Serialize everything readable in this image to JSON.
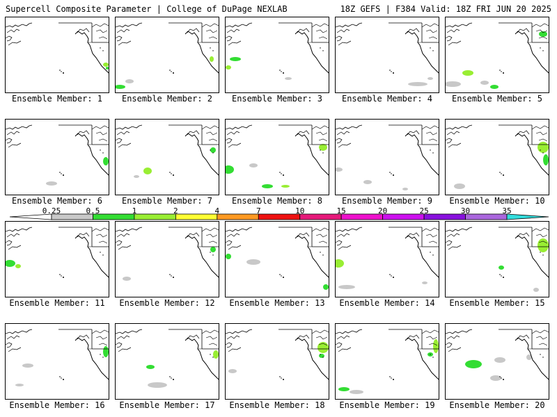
{
  "header": {
    "left": "Supercell Composite Parameter | College of DuPage NEXLAB",
    "right": "18Z GEFS | F384 Valid: 18Z FRI JUN 20 2025"
  },
  "member_label_prefix": "Ensemble Member: ",
  "members": [
    "1",
    "2",
    "3",
    "4",
    "5",
    "6",
    "7",
    "8",
    "9",
    "10",
    "11",
    "12",
    "13",
    "14",
    "15",
    "16",
    "17",
    "18",
    "19",
    "20"
  ],
  "colorbar": {
    "levels": [
      "0.25",
      "0.5",
      "1",
      "2",
      "4",
      "7",
      "10",
      "15",
      "20",
      "25",
      "30",
      "35"
    ],
    "colors": [
      "#c8c8c8",
      "#33dd33",
      "#99ee33",
      "#ffff33",
      "#ff9922",
      "#ee1111",
      "#e6197a",
      "#ee11cc",
      "#cc11ee",
      "#8811dd",
      "#aa66dd",
      "#33dddd"
    ]
  },
  "map_colors": {
    "coast": "#000000",
    "light": "#c8c8c8",
    "green": "#33dd33",
    "lime": "#99ee33"
  }
}
